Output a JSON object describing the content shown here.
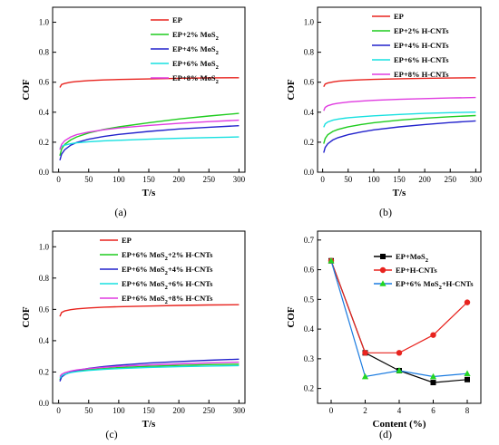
{
  "chart_data": [
    {
      "panel": "(a)",
      "type": "line",
      "xlabel": "T/s",
      "ylabel": "COF",
      "xlim": [
        -10,
        310
      ],
      "ylim": [
        0,
        1.1
      ],
      "xticks": [
        0,
        50,
        100,
        150,
        200,
        250,
        300
      ],
      "yticks": [
        0.0,
        0.2,
        0.4,
        0.6,
        0.8,
        1.0
      ],
      "tick_labels_y": [
        "0.0",
        "0.2",
        "0.4",
        "0.6",
        "0.8",
        "1.0"
      ],
      "legend_position": "top-right",
      "x": [
        2,
        5,
        10,
        20,
        30,
        50,
        75,
        100,
        150,
        200,
        250,
        300
      ],
      "series": [
        {
          "name": "EP",
          "sub": "",
          "color": "#e8231e",
          "values": [
            0.565,
            0.585,
            0.592,
            0.6,
            0.605,
            0.611,
            0.615,
            0.618,
            0.622,
            0.626,
            0.629,
            0.63
          ]
        },
        {
          "name": "EP+2% MoS",
          "sub": "2",
          "color": "#1fcc1f",
          "values": [
            0.11,
            0.155,
            0.185,
            0.215,
            0.235,
            0.262,
            0.285,
            0.302,
            0.33,
            0.355,
            0.375,
            0.392
          ]
        },
        {
          "name": "EP+4% MoS",
          "sub": "2",
          "color": "#2222cc",
          "values": [
            0.08,
            0.12,
            0.15,
            0.18,
            0.198,
            0.22,
            0.238,
            0.252,
            0.272,
            0.288,
            0.3,
            0.31
          ]
        },
        {
          "name": "EP+6% MoS",
          "sub": "2",
          "color": "#16e0e0",
          "values": [
            0.16,
            0.172,
            0.18,
            0.19,
            0.196,
            0.203,
            0.209,
            0.213,
            0.22,
            0.226,
            0.231,
            0.235
          ]
        },
        {
          "name": "EP+8% MoS",
          "sub": "2",
          "color": "#e03be0",
          "values": [
            0.15,
            0.185,
            0.21,
            0.235,
            0.25,
            0.268,
            0.283,
            0.295,
            0.312,
            0.326,
            0.337,
            0.347
          ]
        }
      ]
    },
    {
      "panel": "(b)",
      "type": "line",
      "xlabel": "T/s",
      "ylabel": "COF",
      "xlim": [
        -10,
        310
      ],
      "ylim": [
        0,
        1.1
      ],
      "xticks": [
        0,
        50,
        100,
        150,
        200,
        250,
        300
      ],
      "yticks": [
        0.0,
        0.2,
        0.4,
        0.6,
        0.8,
        1.0
      ],
      "tick_labels_y": [
        "0.0",
        "0.2",
        "0.4",
        "0.6",
        "0.8",
        "1.0"
      ],
      "legend_position": "top-right",
      "x": [
        2,
        5,
        10,
        20,
        30,
        50,
        75,
        100,
        150,
        200,
        250,
        300
      ],
      "series": [
        {
          "name": "EP",
          "sub": "",
          "color": "#e8231e",
          "values": [
            0.57,
            0.588,
            0.595,
            0.602,
            0.607,
            0.612,
            0.616,
            0.619,
            0.623,
            0.626,
            0.628,
            0.63
          ]
        },
        {
          "name": "EP+2% H-CNTs",
          "sub": "",
          "color": "#1fcc1f",
          "values": [
            0.19,
            0.225,
            0.25,
            0.272,
            0.285,
            0.303,
            0.318,
            0.33,
            0.347,
            0.36,
            0.37,
            0.378
          ]
        },
        {
          "name": "EP+4% H-CNTs",
          "sub": "",
          "color": "#2222cc",
          "values": [
            0.13,
            0.165,
            0.19,
            0.215,
            0.23,
            0.25,
            0.268,
            0.282,
            0.302,
            0.318,
            0.331,
            0.342
          ]
        },
        {
          "name": "EP+6% H-CNTs",
          "sub": "",
          "color": "#16e0e0",
          "values": [
            0.3,
            0.322,
            0.335,
            0.347,
            0.354,
            0.363,
            0.37,
            0.376,
            0.385,
            0.392,
            0.397,
            0.401
          ]
        },
        {
          "name": "EP+8% H-CNTs",
          "sub": "",
          "color": "#e03be0",
          "values": [
            0.41,
            0.432,
            0.443,
            0.454,
            0.46,
            0.468,
            0.474,
            0.479,
            0.486,
            0.491,
            0.495,
            0.498
          ]
        }
      ]
    },
    {
      "panel": "(c)",
      "type": "line",
      "xlabel": "T/s",
      "ylabel": "COF",
      "xlim": [
        -10,
        310
      ],
      "ylim": [
        0,
        1.1
      ],
      "xticks": [
        0,
        50,
        100,
        150,
        200,
        250,
        300
      ],
      "yticks": [
        0.0,
        0.2,
        0.4,
        0.6,
        0.8,
        1.0
      ],
      "tick_labels_y": [
        "0.0",
        "0.2",
        "0.4",
        "0.6",
        "0.8",
        "1.0"
      ],
      "legend_position": "top-right",
      "x": [
        2,
        5,
        10,
        20,
        30,
        50,
        75,
        100,
        150,
        200,
        250,
        300
      ],
      "series": [
        {
          "name": "EP",
          "sub": "",
          "color": "#e8231e",
          "values": [
            0.555,
            0.58,
            0.59,
            0.598,
            0.603,
            0.609,
            0.614,
            0.617,
            0.621,
            0.625,
            0.628,
            0.63
          ]
        },
        {
          "name": "EP+6% MoS",
          "sub": "2",
          "suffix": "+2% H-CNTs",
          "color": "#1fcc1f",
          "values": [
            0.15,
            0.172,
            0.185,
            0.198,
            0.205,
            0.214,
            0.222,
            0.228,
            0.236,
            0.242,
            0.247,
            0.25
          ]
        },
        {
          "name": "EP+6% MoS",
          "sub": "2",
          "suffix": "+4% H-CNTs",
          "color": "#2222cc",
          "values": [
            0.14,
            0.168,
            0.183,
            0.2,
            0.21,
            0.223,
            0.235,
            0.244,
            0.257,
            0.267,
            0.275,
            0.282
          ]
        },
        {
          "name": "EP+6% MoS",
          "sub": "2",
          "suffix": "+6% H-CNTs",
          "color": "#16e0e0",
          "values": [
            0.16,
            0.176,
            0.186,
            0.196,
            0.202,
            0.21,
            0.217,
            0.222,
            0.229,
            0.234,
            0.238,
            0.241
          ]
        },
        {
          "name": "EP+6% MoS",
          "sub": "2",
          "suffix": "+8% H-CNTs",
          "color": "#e03be0",
          "values": [
            0.17,
            0.185,
            0.195,
            0.206,
            0.213,
            0.222,
            0.23,
            0.236,
            0.245,
            0.252,
            0.258,
            0.263
          ]
        }
      ]
    },
    {
      "panel": "(d)",
      "type": "line",
      "markers": true,
      "xlabel": "Content (%)",
      "ylabel": "COF",
      "xlim": [
        -0.8,
        8.8
      ],
      "ylim": [
        0.15,
        0.73
      ],
      "xticks": [
        0,
        2,
        4,
        6,
        8
      ],
      "yticks": [
        0.2,
        0.3,
        0.4,
        0.5,
        0.6,
        0.7
      ],
      "tick_labels_y": [
        "0.2",
        "0.3",
        "0.4",
        "0.5",
        "0.6",
        "0.7"
      ],
      "legend_position": "top-right",
      "x": [
        0,
        2,
        4,
        6,
        8
      ],
      "series": [
        {
          "name": "EP+MoS",
          "sub": "2",
          "color": "#000000",
          "marker": "square",
          "values": [
            0.63,
            0.32,
            0.26,
            0.22,
            0.23
          ]
        },
        {
          "name": "EP+H-CNTs",
          "sub": "",
          "color": "#e8231e",
          "marker": "circle",
          "values": [
            0.63,
            0.32,
            0.32,
            0.38,
            0.49
          ]
        },
        {
          "name": "EP+6% MoS",
          "sub": "2",
          "suffix": "+H-CNTs",
          "color": "#1a7be0",
          "marker_color": "#22d622",
          "marker": "triangle",
          "values": [
            0.63,
            0.24,
            0.26,
            0.24,
            0.25
          ]
        }
      ]
    }
  ]
}
